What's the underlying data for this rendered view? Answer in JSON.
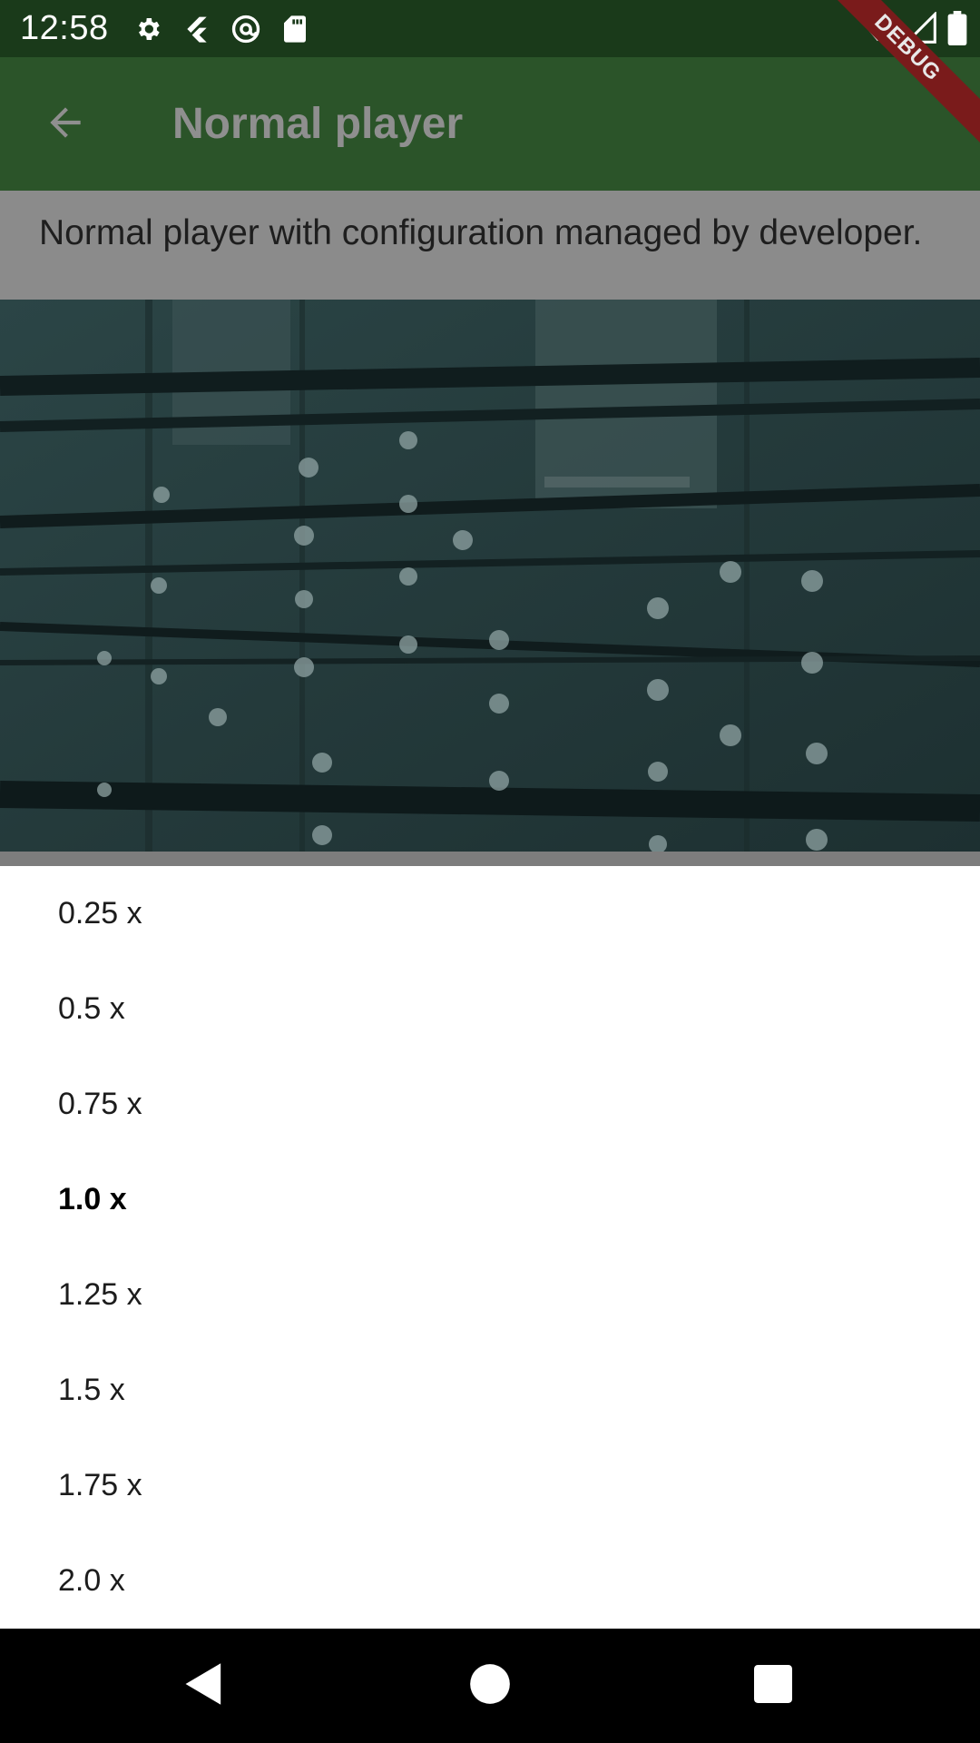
{
  "status_bar": {
    "time": "12:58",
    "left_icons": [
      "gear-icon",
      "flutter-icon",
      "at-sign-icon",
      "sd-card-icon"
    ],
    "right_icons": [
      "wifi-icon",
      "signal-icon",
      "battery-icon"
    ]
  },
  "debug_banner": "DEBUG",
  "app_bar": {
    "title": "Normal player",
    "back_icon": "arrow-back-icon"
  },
  "description": "Normal player with configuration managed by developer.",
  "speed_options": {
    "items": [
      "0.25 x",
      "0.5 x",
      "0.75 x",
      "1.0 x",
      "1.25 x",
      "1.5 x",
      "1.75 x",
      "2.0 x"
    ],
    "selected": "1.0 x"
  },
  "nav_bar": {
    "icons": [
      "back-triangle-icon",
      "home-circle-icon",
      "recents-square-icon"
    ]
  },
  "colors": {
    "status_bar": "#1a3a1a",
    "app_bar": "#2b5429",
    "debug_banner": "#7a1b1b",
    "scrim": "#8b8b8b"
  }
}
